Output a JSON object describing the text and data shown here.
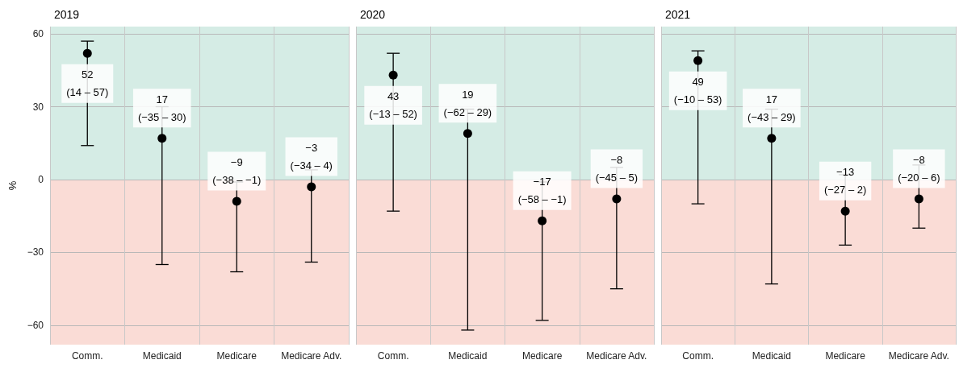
{
  "chart_data": [
    {
      "type": "scatter",
      "title": "2019",
      "ylabel": "%",
      "categories": [
        "Comm.",
        "Medicaid",
        "Medicare",
        "Medicare Adv."
      ],
      "values": [
        52,
        17,
        -9,
        -3
      ],
      "errors": [
        [
          14,
          57
        ],
        [
          -35,
          30
        ],
        [
          -38,
          -1
        ],
        [
          -34,
          4
        ]
      ],
      "value_labels": [
        "52\n(14 – 57)",
        "17\n(−35 – 30)",
        "−9\n(−38 – −1)",
        "−3\n(−34 – 4)"
      ],
      "color": "#000000",
      "marker": "circle",
      "ylim": [
        -68,
        63
      ],
      "yticks": [
        -60,
        -30,
        0,
        30,
        60
      ],
      "grid": true,
      "bands": [
        {
          "axis": "y",
          "from": 0,
          "to": 63,
          "color": "#d5ece5"
        },
        {
          "axis": "y",
          "from": -68,
          "to": 0,
          "color": "#fadcd6"
        }
      ]
    },
    {
      "type": "scatter",
      "title": "2020",
      "categories": [
        "Comm.",
        "Medicaid",
        "Medicare",
        "Medicare Adv."
      ],
      "values": [
        43,
        19,
        -17,
        -8
      ],
      "errors": [
        [
          -13,
          52
        ],
        [
          -62,
          29
        ],
        [
          -58,
          -1
        ],
        [
          -45,
          5
        ]
      ],
      "value_labels": [
        "43\n(−13 – 52)",
        "19\n(−62 – 29)",
        "−17\n(−58 – −1)",
        "−8\n(−45 – 5)"
      ],
      "color": "#000000",
      "marker": "circle",
      "ylim": [
        -68,
        63
      ],
      "yticks": [
        -60,
        -30,
        0,
        30,
        60
      ],
      "grid": true,
      "tick_labels": "x",
      "bands": [
        {
          "axis": "y",
          "from": 0,
          "to": 63,
          "color": "#d5ece5"
        },
        {
          "axis": "y",
          "from": -68,
          "to": 0,
          "color": "#fadcd6"
        }
      ]
    },
    {
      "type": "scatter",
      "title": "2021",
      "categories": [
        "Comm.",
        "Medicaid",
        "Medicare",
        "Medicare Adv."
      ],
      "values": [
        49,
        17,
        -13,
        -8
      ],
      "errors": [
        [
          -10,
          53
        ],
        [
          -43,
          29
        ],
        [
          -27,
          2
        ],
        [
          -20,
          6
        ]
      ],
      "value_labels": [
        "49\n(−10 – 53)",
        "17\n(−43 – 29)",
        "−13\n(−27 – 2)",
        "−8\n(−20 – 6)"
      ],
      "color": "#000000",
      "marker": "circle",
      "ylim": [
        -68,
        63
      ],
      "yticks": [
        -60,
        -30,
        0,
        30,
        60
      ],
      "grid": true,
      "tick_labels": "x",
      "bands": [
        {
          "axis": "y",
          "from": 0,
          "to": 63,
          "color": "#d5ece5"
        },
        {
          "axis": "y",
          "from": -68,
          "to": 0,
          "color": "#fadcd6"
        }
      ]
    }
  ]
}
